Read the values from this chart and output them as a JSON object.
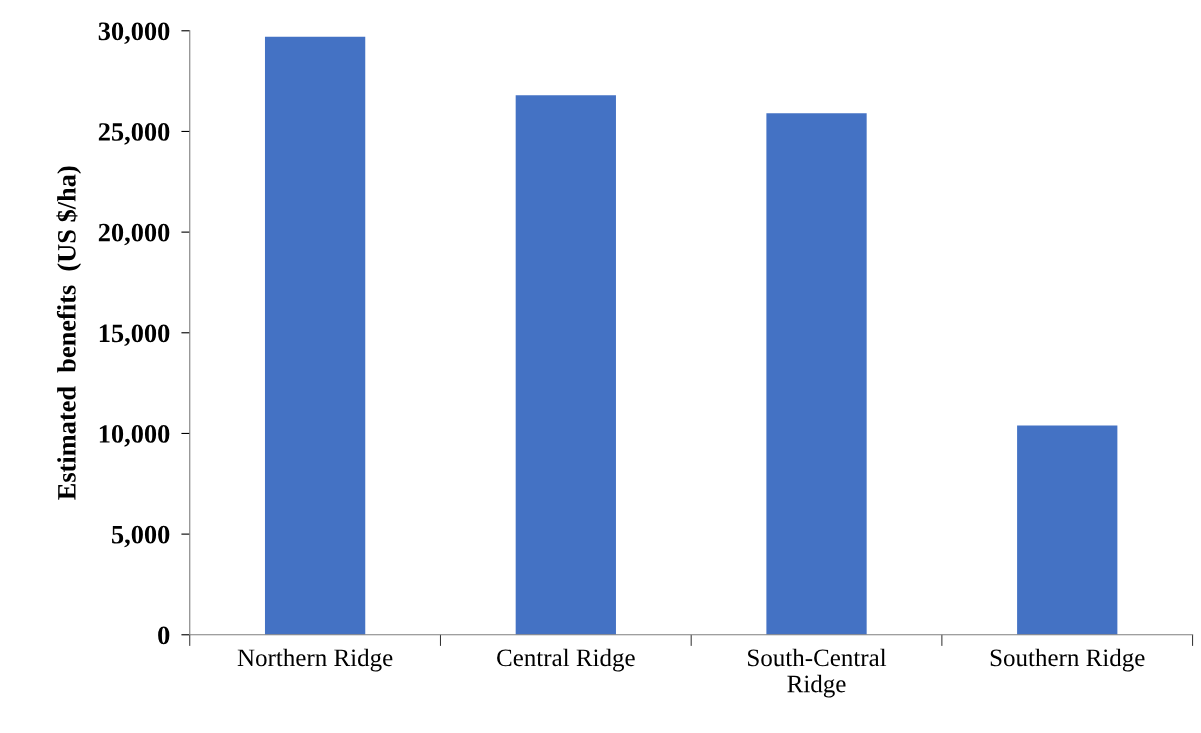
{
  "chart_data": {
    "type": "bar",
    "ylabel": "Estimated  benefits  (US $/ha)",
    "categories": [
      "Northern Ridge",
      "Central Ridge",
      "South-Central\nRidge",
      "Southern Ridge"
    ],
    "values": [
      29700,
      26800,
      25900,
      10400
    ],
    "color": "#4472c4",
    "ylim": [
      0,
      30000
    ],
    "yticks": [
      {
        "value": 0,
        "label": "0"
      },
      {
        "value": 5000,
        "label": "5,000"
      },
      {
        "value": 10000,
        "label": "10,000"
      },
      {
        "value": 15000,
        "label": "15,000"
      },
      {
        "value": 20000,
        "label": "20,000"
      },
      {
        "value": 25000,
        "label": "25,000"
      },
      {
        "value": 30000,
        "label": "30,000"
      }
    ],
    "grid": false
  }
}
